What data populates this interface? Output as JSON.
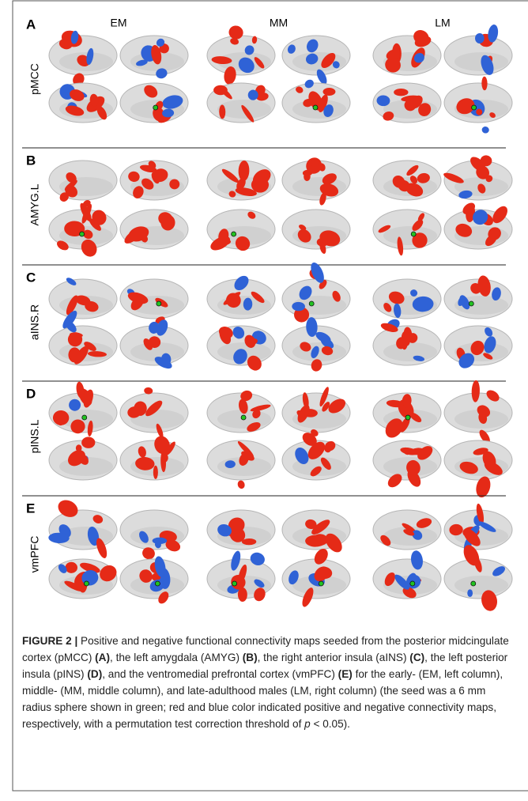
{
  "figure": {
    "panels": [
      {
        "letter": "A",
        "label": "pMCC"
      },
      {
        "letter": "B",
        "label": "AMYG.L"
      },
      {
        "letter": "C",
        "label": "aINS.R"
      },
      {
        "letter": "D",
        "label": "pINS.L"
      },
      {
        "letter": "E",
        "label": "vmPFC"
      }
    ],
    "columns": [
      "EM",
      "MM",
      "LM"
    ]
  },
  "caption": {
    "label": "FIGURE 2 |",
    "segments": [
      " Positive and negative functional connectivity maps seeded from the posterior midcingulate cortex (pMCC) ",
      "(A)",
      ", the left amygdala (AMYG) ",
      "(B)",
      ", the right anterior insula (aINS) ",
      "(C)",
      ", the left posterior insula (pINS) ",
      "(D)",
      ", and the ventromedial prefrontal cortex (vmPFC) ",
      "(E)",
      " for the early- (EM, left column), middle- (MM, middle column), and late-adulthood males (LM, right column) (the seed was a 6 mm radius sphere shown in green; red and blue color indicated positive and negative connectivity maps, respectively, with a permutation test correction threshold of ",
      "p",
      " < 0.05)."
    ]
  }
}
